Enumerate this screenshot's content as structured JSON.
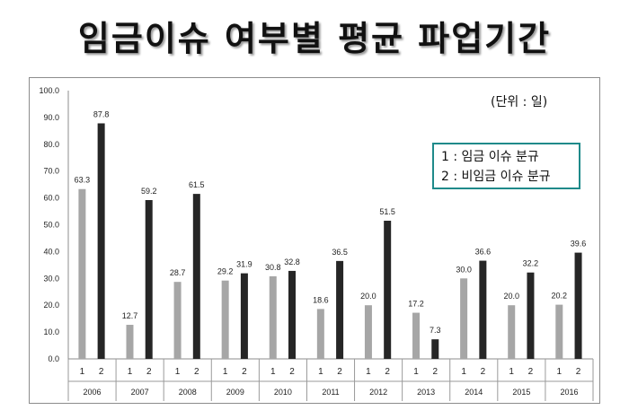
{
  "title": "임금이슈 여부별 평균 파업기간",
  "unit_label": "(단위 : 일)",
  "legend": [
    "1 : 임금 이슈 분규",
    "2 : 비임금 이슈 분규"
  ],
  "colors": {
    "series1": "#a6a6a6",
    "series2": "#262626",
    "legend_border": "#1f8a8a"
  },
  "chart_data": {
    "type": "bar",
    "categories": [
      "2006",
      "2007",
      "2008",
      "2009",
      "2010",
      "2011",
      "2012",
      "2013",
      "2014",
      "2015",
      "2016"
    ],
    "subcategories": [
      "1",
      "2"
    ],
    "series": [
      {
        "name": "1",
        "values": [
          63.3,
          12.7,
          28.7,
          29.2,
          30.8,
          18.6,
          20.0,
          17.2,
          30.0,
          20.0,
          20.2
        ]
      },
      {
        "name": "2",
        "values": [
          87.8,
          59.2,
          61.5,
          31.9,
          32.8,
          36.5,
          51.5,
          7.3,
          36.6,
          32.2,
          39.6
        ]
      }
    ],
    "ylim": [
      0,
      100
    ],
    "yticks": [
      "0.0",
      "10.0",
      "20.0",
      "30.0",
      "40.0",
      "50.0",
      "60.0",
      "70.0",
      "80.0",
      "90.0",
      "100.0"
    ],
    "data_labels": [
      [
        "63.3",
        "12.7",
        "28.7",
        "29.2",
        "30.8",
        "18.6",
        "20.0",
        "17.2",
        "30.0",
        "20.0",
        "20.2"
      ],
      [
        "87.8",
        "59.2",
        "61.5",
        "31.9",
        "32.8",
        "36.5",
        "51.5",
        "7.3",
        "36.6",
        "32.2",
        "39.6"
      ]
    ],
    "grid": false
  }
}
